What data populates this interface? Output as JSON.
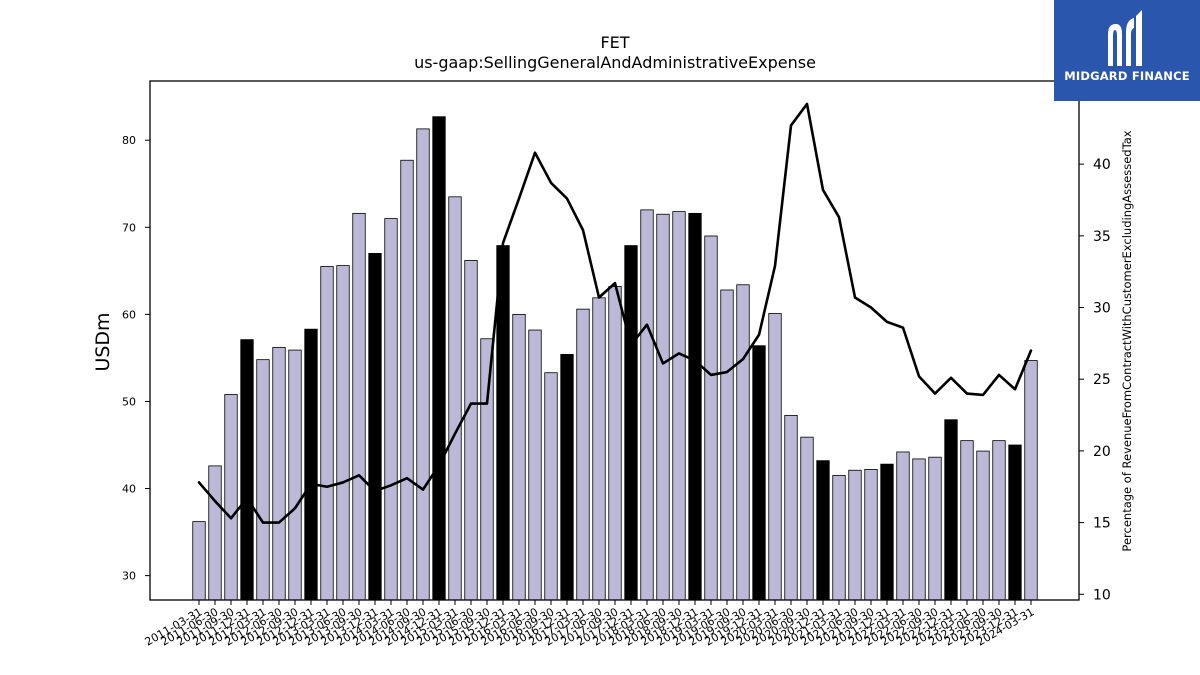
{
  "chart_data": {
    "type": "bar",
    "title": "FET",
    "subtitle": "us-gaap:SellingGeneralAndAdministrativeExpense",
    "ylabel": "USDm",
    "y2label": "Percentage of RevenueFromContractWithCustomerExcludingAssessedTax",
    "ylim": [
      27.2,
      86.8
    ],
    "y2lim": [
      9.6,
      45.8
    ],
    "yticks": [
      30,
      40,
      50,
      60,
      70,
      80
    ],
    "y2ticks": [
      10,
      15,
      20,
      25,
      30,
      35,
      40
    ],
    "categories": [
      "2011-03-31",
      "2011-06-30",
      "2011-09-30",
      "2011-12-31",
      "2012-03-31",
      "2012-06-30",
      "2012-09-30",
      "2012-12-31",
      "2013-03-31",
      "2013-06-30",
      "2013-09-30",
      "2013-12-31",
      "2014-03-31",
      "2014-06-30",
      "2014-09-30",
      "2014-12-31",
      "2015-03-31",
      "2015-06-30",
      "2015-09-30",
      "2015-12-31",
      "2016-03-31",
      "2016-06-30",
      "2016-09-30",
      "2016-12-31",
      "2017-03-31",
      "2017-06-30",
      "2017-09-30",
      "2017-12-31",
      "2018-03-31",
      "2018-06-30",
      "2018-09-30",
      "2018-12-31",
      "2019-03-31",
      "2019-06-30",
      "2019-09-30",
      "2019-12-31",
      "2020-03-31",
      "2020-06-30",
      "2020-09-30",
      "2020-12-31",
      "2021-03-31",
      "2021-06-30",
      "2021-09-30",
      "2021-12-31",
      "2022-03-31",
      "2022-06-30",
      "2022-09-30",
      "2022-12-31",
      "2023-03-31",
      "2023-06-30",
      "2023-09-30",
      "2023-12-31",
      "2024-03-31"
    ],
    "series": [
      {
        "kind": "bar",
        "axis": "left",
        "values": [
          36.2,
          42.6,
          50.8,
          57.1,
          54.8,
          56.2,
          55.9,
          58.3,
          65.5,
          65.6,
          71.6,
          67.0,
          71.0,
          77.7,
          81.3,
          82.7,
          73.5,
          66.2,
          57.2,
          67.9,
          60.0,
          58.2,
          53.3,
          55.4,
          60.6,
          61.9,
          63.2,
          67.9,
          72.0,
          71.5,
          71.8,
          71.6,
          69.0,
          62.8,
          63.4,
          56.4,
          60.1,
          48.4,
          45.9,
          43.2,
          41.5,
          42.1,
          42.2,
          42.8,
          44.2,
          43.4,
          43.6,
          47.9,
          45.5,
          44.3,
          45.5,
          45.0,
          54.7
        ],
        "highlight_color": "#000000",
        "base_color": "#bcb8d8"
      },
      {
        "kind": "line",
        "axis": "right",
        "values": [
          17.8,
          16.5,
          15.3,
          16.7,
          15.0,
          15.0,
          16.0,
          17.7,
          17.5,
          17.8,
          18.3,
          17.2,
          17.6,
          18.1,
          17.3,
          19.0,
          21.2,
          23.3,
          23.3,
          34.5,
          37.6,
          40.8,
          38.7,
          37.6,
          35.4,
          30.7,
          31.7,
          27.4,
          28.8,
          26.1,
          26.8,
          26.3,
          25.3,
          25.5,
          26.4,
          28.1,
          32.9,
          42.7,
          44.2,
          38.2,
          36.3,
          30.7,
          30.0,
          29.0,
          28.6,
          25.2,
          24.0,
          25.1,
          24.0,
          23.9,
          25.3,
          24.3,
          27.0
        ],
        "color": "#000000"
      }
    ],
    "grid": false,
    "legend": "none"
  },
  "logo": {
    "text": "MIDGARD FINANCE",
    "icon": "midgard-logo-icon",
    "bg_color": "#2a57ad"
  }
}
